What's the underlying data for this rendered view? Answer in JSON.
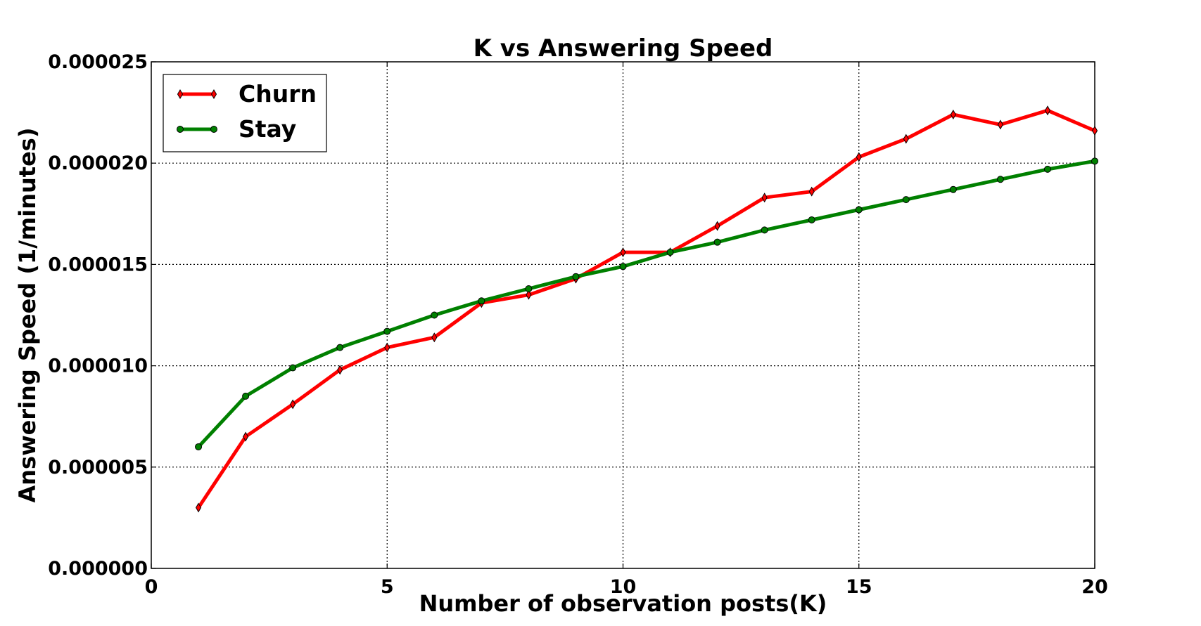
{
  "chart_data": {
    "type": "line",
    "title": "K vs Answering Speed",
    "xlabel": "Number of observation posts(K)",
    "ylabel": "Answering Speed (1/minutes)",
    "xlim": [
      0,
      20
    ],
    "ylim": [
      0,
      2.5e-05
    ],
    "x_ticks": [
      0,
      5,
      10,
      15,
      20
    ],
    "x_tick_labels": [
      "0",
      "5",
      "10",
      "15",
      "20"
    ],
    "y_ticks": [
      0,
      5e-06,
      1e-05,
      1.5e-05,
      2e-05,
      2.5e-05
    ],
    "y_tick_labels": [
      "0.000000",
      "0.000005",
      "0.000010",
      "0.000015",
      "0.000020",
      "0.000025"
    ],
    "grid": true,
    "legend_position": "top-left",
    "x": [
      1,
      2,
      3,
      4,
      5,
      6,
      7,
      8,
      9,
      10,
      11,
      12,
      13,
      14,
      15,
      16,
      17,
      18,
      19,
      20
    ],
    "series": [
      {
        "name": "Churn",
        "color": "#ff0000",
        "marker": "diamond",
        "values": [
          3e-06,
          6.5e-06,
          8.1e-06,
          9.8e-06,
          1.09e-05,
          1.14e-05,
          1.31e-05,
          1.35e-05,
          1.43e-05,
          1.56e-05,
          1.56e-05,
          1.69e-05,
          1.83e-05,
          1.86e-05,
          2.03e-05,
          2.12e-05,
          2.24e-05,
          2.19e-05,
          2.26e-05,
          2.16e-05
        ]
      },
      {
        "name": "Stay",
        "color": "#008000",
        "marker": "circle",
        "values": [
          6e-06,
          8.5e-06,
          9.9e-06,
          1.09e-05,
          1.17e-05,
          1.25e-05,
          1.32e-05,
          1.38e-05,
          1.44e-05,
          1.49e-05,
          1.56e-05,
          1.61e-05,
          1.67e-05,
          1.72e-05,
          1.77e-05,
          1.82e-05,
          1.87e-05,
          1.92e-05,
          1.97e-05,
          2.01e-05
        ]
      }
    ]
  }
}
